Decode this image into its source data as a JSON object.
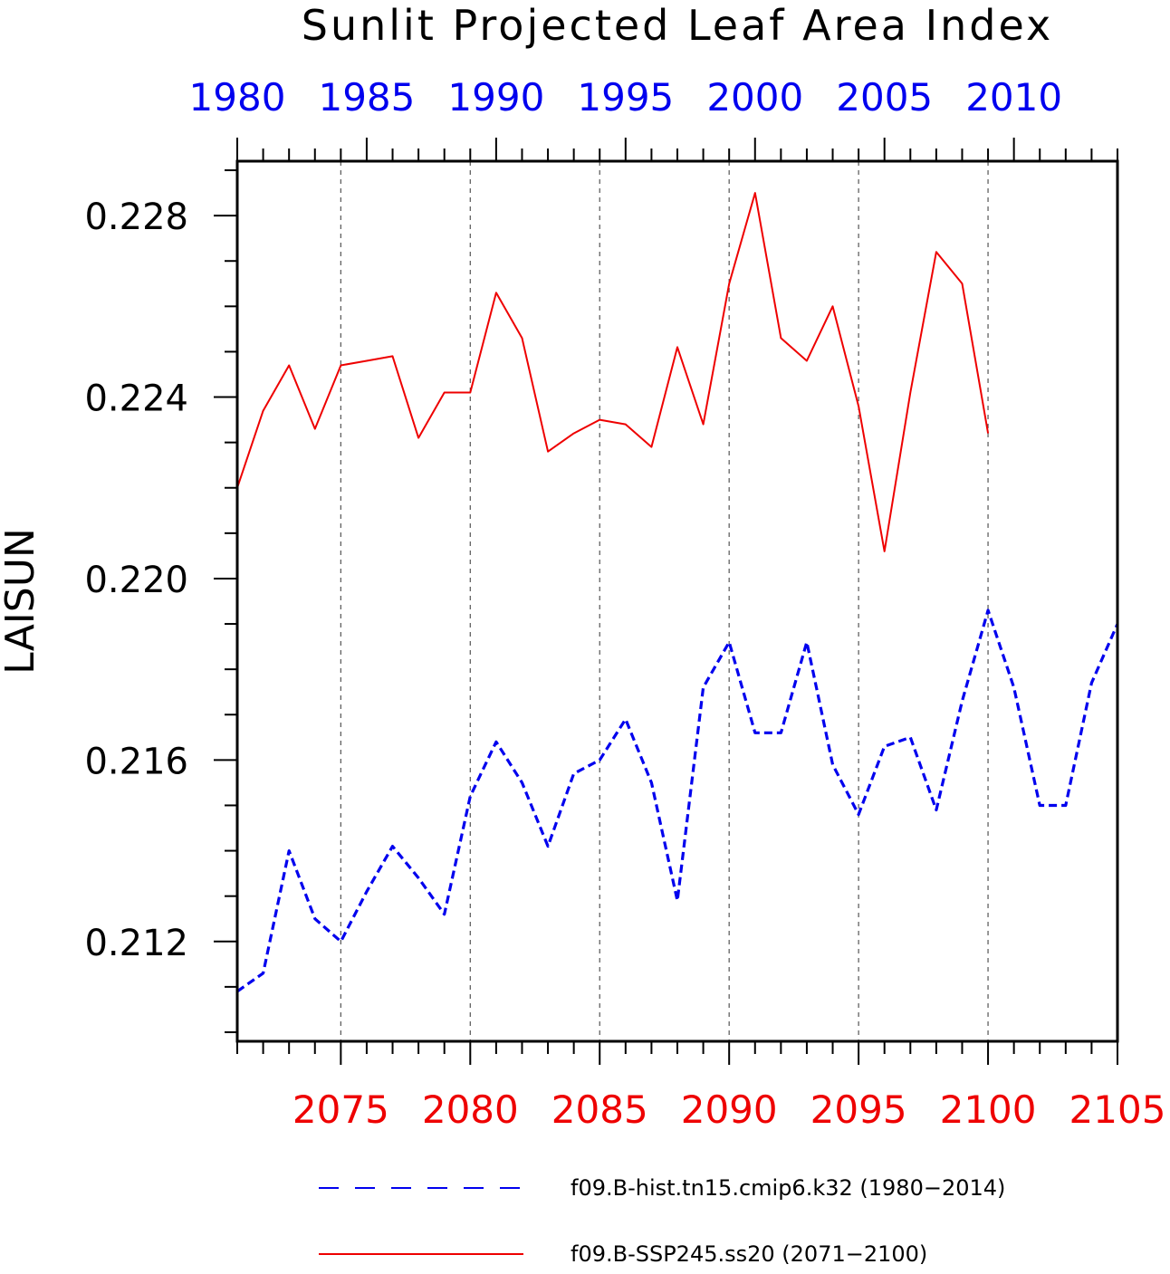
{
  "chart_data": {
    "type": "line",
    "title": "Sunlit Projected Leaf Area Index",
    "ylabel": "LAISUN",
    "ylim": [
      0.2098,
      0.2292
    ],
    "y_ticks": [
      "0.212",
      "0.216",
      "0.220",
      "0.224",
      "0.228"
    ],
    "y_tick_values": [
      0.212,
      0.216,
      0.22,
      0.224,
      0.228
    ],
    "grid": "vertical-dashed",
    "bottom_axis": {
      "color": "#ee0000",
      "range": [
        2071,
        2105
      ],
      "ticks": [
        "2075",
        "2080",
        "2085",
        "2090",
        "2095",
        "2100",
        "2105"
      ],
      "tick_values": [
        2075,
        2080,
        2085,
        2090,
        2095,
        2100,
        2105
      ]
    },
    "top_axis": {
      "color": "#0000ee",
      "range": [
        1980,
        2014
      ],
      "ticks": [
        "1980",
        "1985",
        "1990",
        "1995",
        "2000",
        "2005",
        "2010"
      ],
      "tick_values": [
        1980,
        1985,
        1990,
        1995,
        2000,
        2005,
        2010
      ]
    },
    "series": [
      {
        "name": "f09.B-hist.tn15.cmip6.k32 (1980−2014)",
        "axis": "top",
        "color": "#0000ee",
        "style": "dashed",
        "x": [
          1980,
          1981,
          1982,
          1983,
          1984,
          1985,
          1986,
          1987,
          1988,
          1989,
          1990,
          1991,
          1992,
          1993,
          1994,
          1995,
          1996,
          1997,
          1998,
          1999,
          2000,
          2001,
          2002,
          2003,
          2004,
          2005,
          2006,
          2007,
          2008,
          2009,
          2010,
          2011,
          2012,
          2013,
          2014
        ],
        "values": [
          0.2109,
          0.2113,
          0.214,
          0.2125,
          0.212,
          0.2131,
          0.2141,
          0.2134,
          0.2126,
          0.2152,
          0.2164,
          0.2155,
          0.2141,
          0.2157,
          0.216,
          0.2169,
          0.2155,
          0.2129,
          0.2176,
          0.2186,
          0.2166,
          0.2166,
          0.2186,
          0.2159,
          0.2148,
          0.2163,
          0.2165,
          0.2149,
          0.2173,
          0.2193,
          0.2176,
          0.215,
          0.215,
          0.2177,
          0.219
        ]
      },
      {
        "name": "f09.B-SSP245.ss20 (2071−2100)",
        "axis": "bottom",
        "color": "#ee0000",
        "style": "solid",
        "x": [
          2071,
          2072,
          2073,
          2074,
          2075,
          2076,
          2077,
          2078,
          2079,
          2080,
          2081,
          2082,
          2083,
          2084,
          2085,
          2086,
          2087,
          2088,
          2089,
          2090,
          2091,
          2092,
          2093,
          2094,
          2095,
          2096,
          2097,
          2098,
          2099,
          2100
        ],
        "values": [
          0.222,
          0.2237,
          0.2247,
          0.2233,
          0.2247,
          0.2248,
          0.2249,
          0.2231,
          0.2241,
          0.2241,
          0.2263,
          0.2253,
          0.2228,
          0.2232,
          0.2235,
          0.2234,
          0.2229,
          0.2251,
          0.2234,
          0.2265,
          0.2285,
          0.2253,
          0.2248,
          0.226,
          0.2238,
          0.2206,
          0.2241,
          0.2272,
          0.2265,
          0.2232
        ]
      }
    ]
  }
}
